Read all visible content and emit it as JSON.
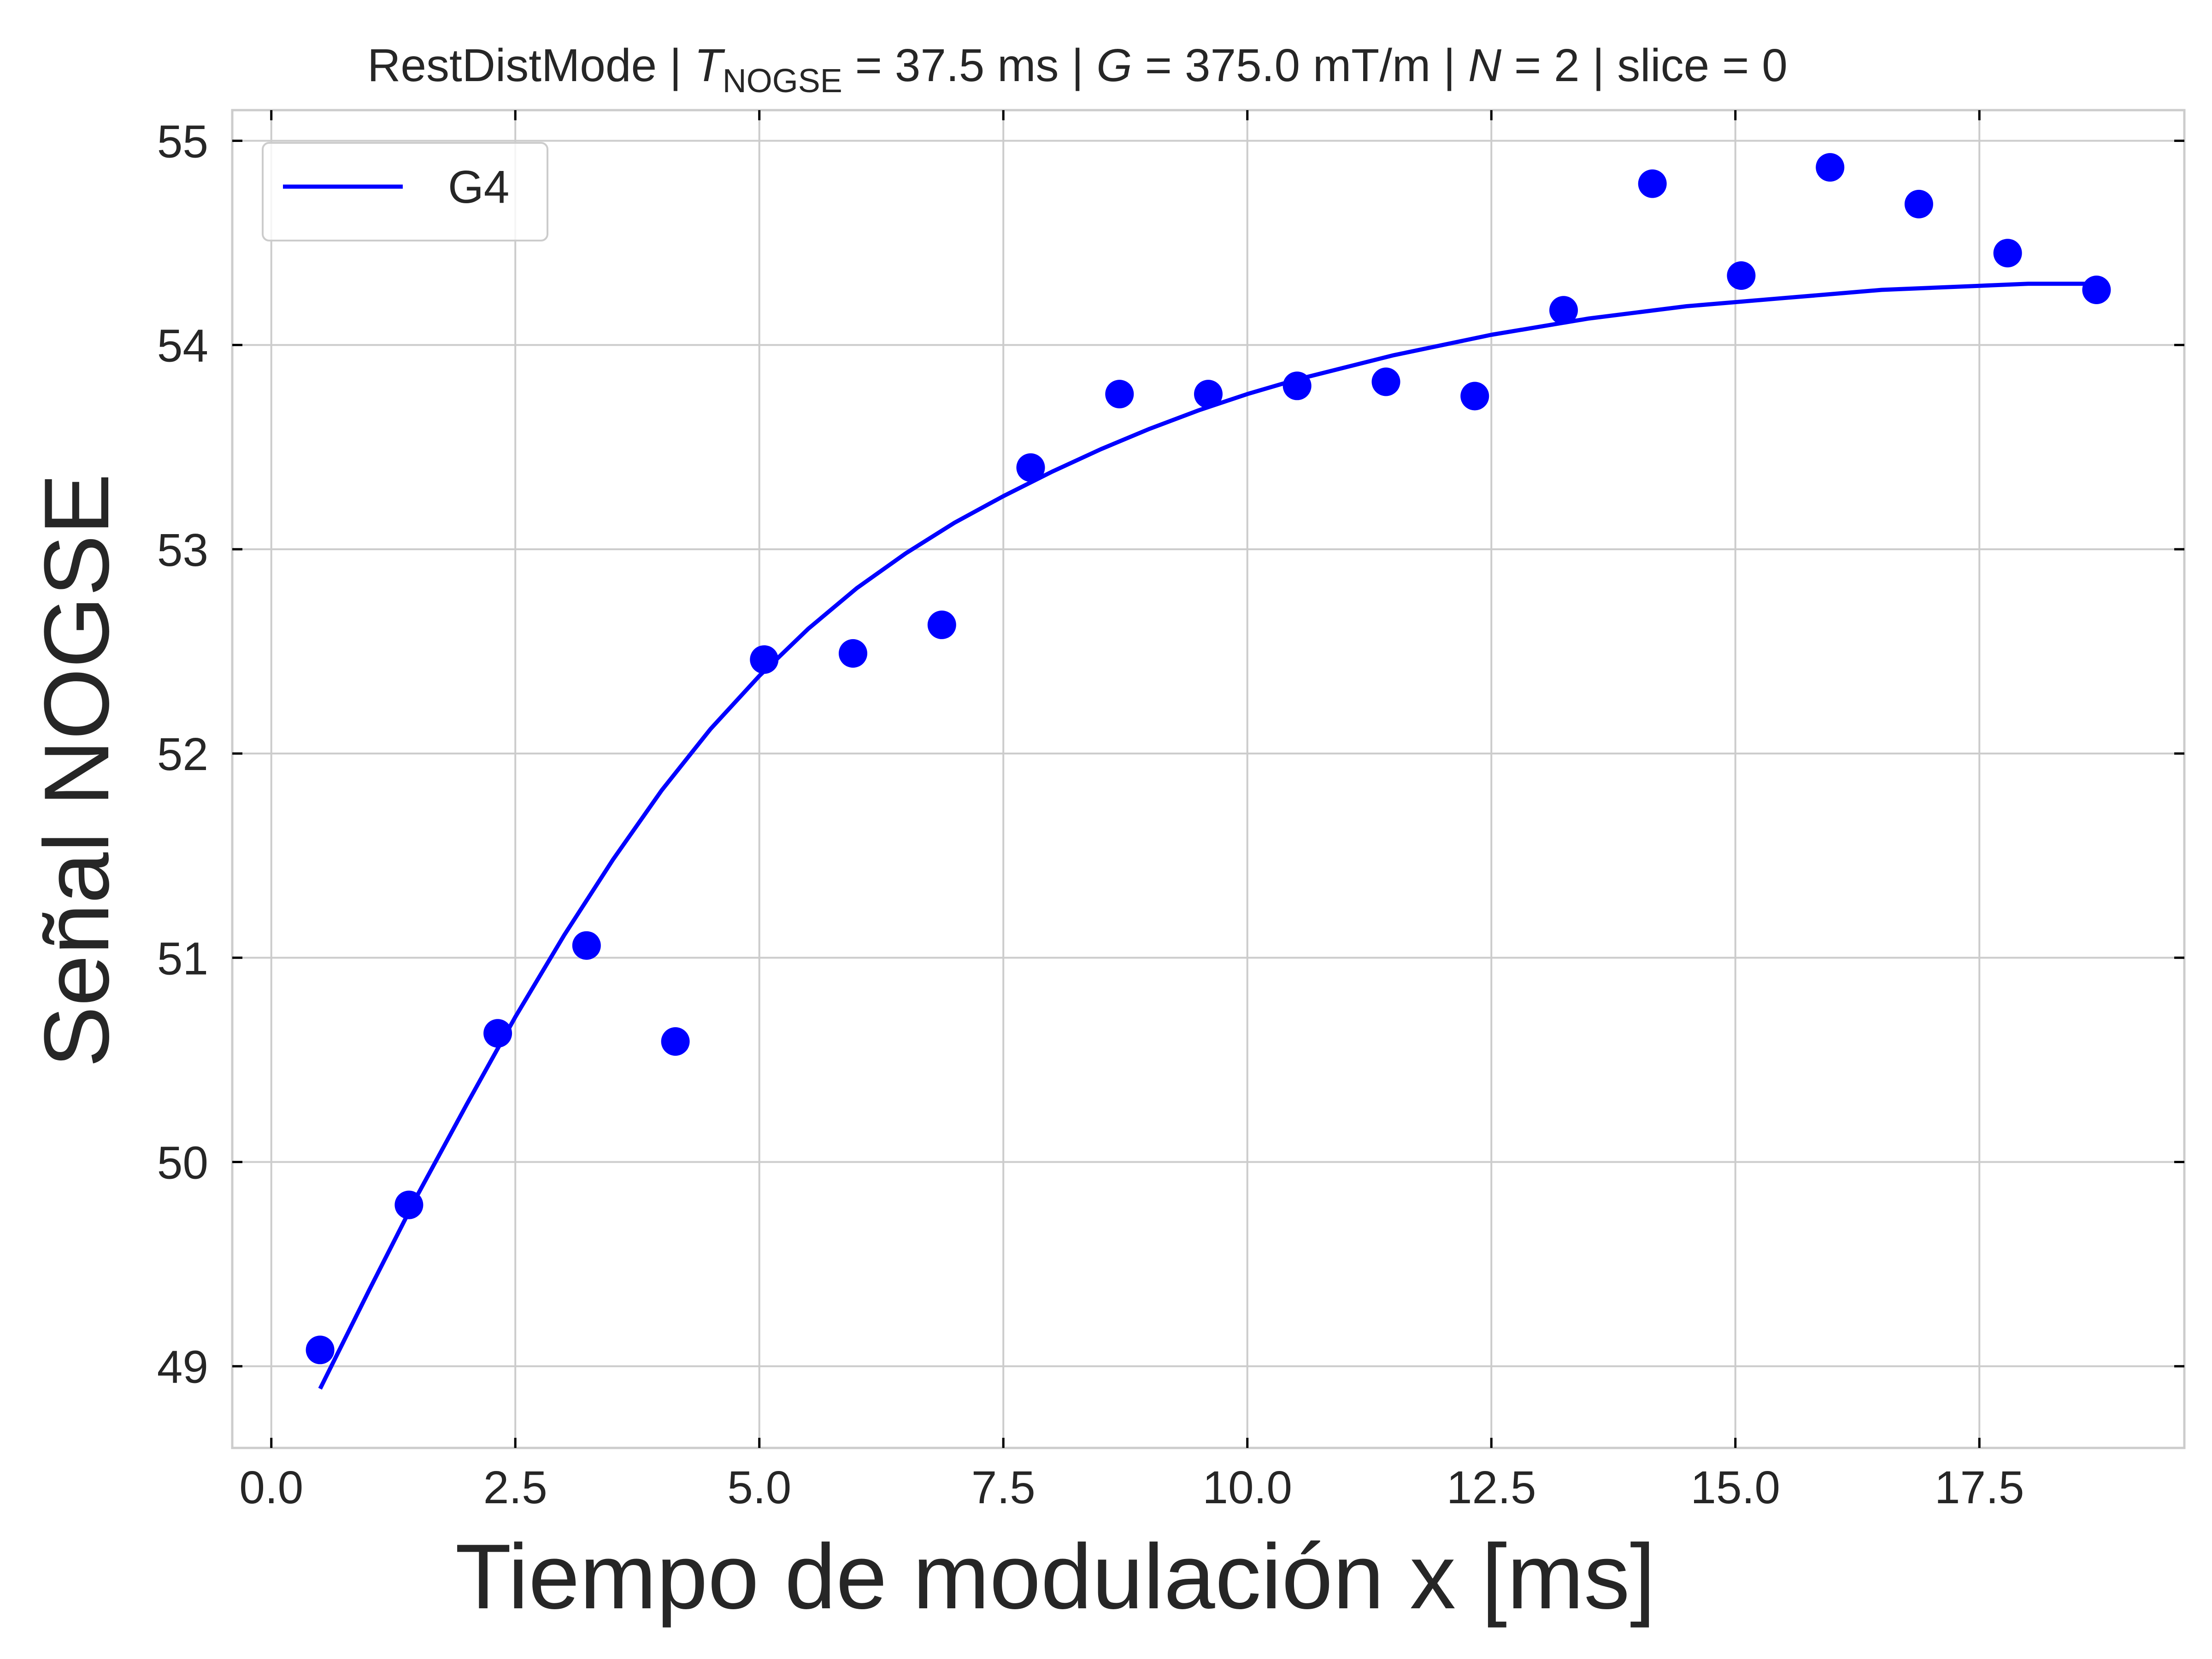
{
  "chart_data": {
    "type": "scatter",
    "title": {
      "prefix": "RestDistMode | ",
      "t_symbol": "T",
      "t_subscript": "NOGSE",
      "t_value": " = 37.5 ms | ",
      "g_symbol": "G",
      "g_value": " = 375.0 mT/m | ",
      "n_symbol": "N",
      "n_value": " = 2 | slice = 0"
    },
    "xlabel": "Tiempo de modulación x [ms]",
    "ylabel": "Señal NOGSE",
    "xlim": [
      -0.4,
      19.6
    ],
    "ylim": [
      48.6,
      55.15
    ],
    "xticks": [
      {
        "value": 0.0,
        "label": "0.0"
      },
      {
        "value": 2.5,
        "label": "2.5"
      },
      {
        "value": 5.0,
        "label": "5.0"
      },
      {
        "value": 7.5,
        "label": "7.5"
      },
      {
        "value": 10.0,
        "label": "10.0"
      },
      {
        "value": 12.5,
        "label": "12.5"
      },
      {
        "value": 15.0,
        "label": "15.0"
      },
      {
        "value": 17.5,
        "label": "17.5"
      }
    ],
    "yticks": [
      {
        "value": 49,
        "label": "49"
      },
      {
        "value": 50,
        "label": "50"
      },
      {
        "value": 51,
        "label": "51"
      },
      {
        "value": 52,
        "label": "52"
      },
      {
        "value": 53,
        "label": "53"
      },
      {
        "value": 54,
        "label": "54"
      },
      {
        "value": 55,
        "label": "55"
      }
    ],
    "grid": true,
    "legend": {
      "placement": "top-left",
      "entries": [
        {
          "label": "G4",
          "color": "#0000ff"
        }
      ]
    },
    "series": [
      {
        "kind": "scatter",
        "color": "#0000ff",
        "x": [
          0.5,
          1.41,
          2.32,
          3.23,
          4.14,
          5.05,
          5.96,
          6.87,
          7.78,
          8.69,
          9.6,
          10.51,
          11.42,
          12.33,
          13.24,
          14.15,
          15.06,
          15.97,
          16.88,
          17.79,
          18.7
        ],
        "y": [
          49.08,
          49.79,
          50.63,
          51.06,
          50.59,
          52.46,
          52.49,
          52.63,
          53.4,
          53.76,
          53.76,
          53.8,
          53.82,
          53.75,
          54.17,
          54.79,
          54.34,
          54.87,
          54.69,
          54.45,
          54.27
        ]
      },
      {
        "name": "G4",
        "kind": "line",
        "color": "#0000ff",
        "x": [
          0.5,
          1.0,
          1.5,
          2.0,
          2.5,
          3.0,
          3.5,
          4.0,
          4.5,
          5.0,
          5.5,
          6.0,
          6.5,
          7.0,
          7.5,
          8.0,
          8.5,
          9.0,
          9.5,
          10.0,
          10.5,
          11.0,
          11.5,
          12.0,
          12.5,
          13.0,
          13.5,
          14.0,
          14.5,
          15.0,
          15.5,
          16.0,
          16.5,
          17.0,
          17.5,
          18.0,
          18.5,
          18.7
        ],
        "y": [
          48.89,
          49.37,
          49.84,
          50.28,
          50.71,
          51.11,
          51.48,
          51.82,
          52.12,
          52.38,
          52.61,
          52.81,
          52.98,
          53.13,
          53.26,
          53.38,
          53.49,
          53.59,
          53.68,
          53.76,
          53.83,
          53.89,
          53.95,
          54.0,
          54.05,
          54.09,
          54.13,
          54.16,
          54.19,
          54.21,
          54.23,
          54.25,
          54.27,
          54.28,
          54.29,
          54.3,
          54.3,
          54.3
        ]
      }
    ]
  }
}
